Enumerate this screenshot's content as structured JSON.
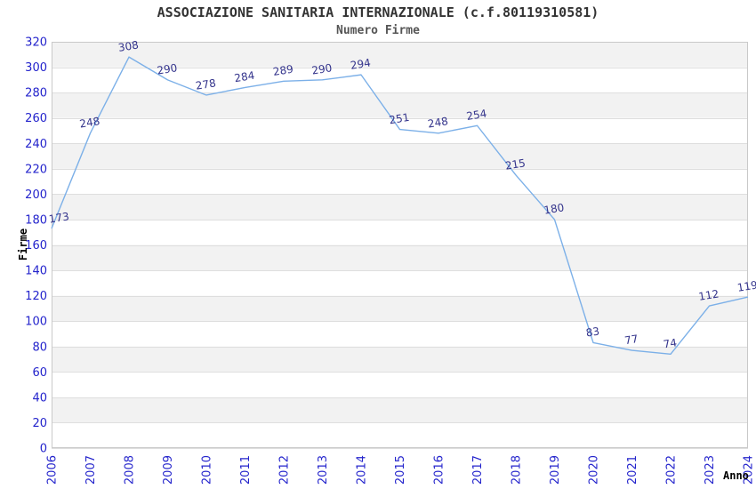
{
  "chart_data": {
    "type": "line",
    "title": "ASSOCIAZIONE SANITARIA INTERNAZIONALE (c.f.80119310581)",
    "subtitle": "Numero Firme",
    "xlabel": "Anno",
    "ylabel": "Firme",
    "categories": [
      "2006",
      "2007",
      "2008",
      "2009",
      "2010",
      "2011",
      "2012",
      "2013",
      "2014",
      "2015",
      "2016",
      "2017",
      "2018",
      "2019",
      "2020",
      "2021",
      "2022",
      "2023",
      "2024"
    ],
    "values": [
      173,
      248,
      308,
      290,
      278,
      284,
      289,
      290,
      294,
      251,
      248,
      254,
      215,
      180,
      83,
      77,
      74,
      112,
      119
    ],
    "ylim": [
      0,
      320
    ],
    "ytick_step": 20,
    "grid": true,
    "legend": "none",
    "point_labels_visible": true,
    "colors": {
      "line": "#7cb0e8",
      "tick_label": "#2424cc",
      "value_label": "#34348c",
      "band": "#f2f2f2",
      "gridline": "#dedede",
      "plot_border": "#c9c9c9",
      "title": "#333333",
      "subtitle": "#555555",
      "axis_title": "#000000",
      "background": "#ffffff"
    }
  }
}
